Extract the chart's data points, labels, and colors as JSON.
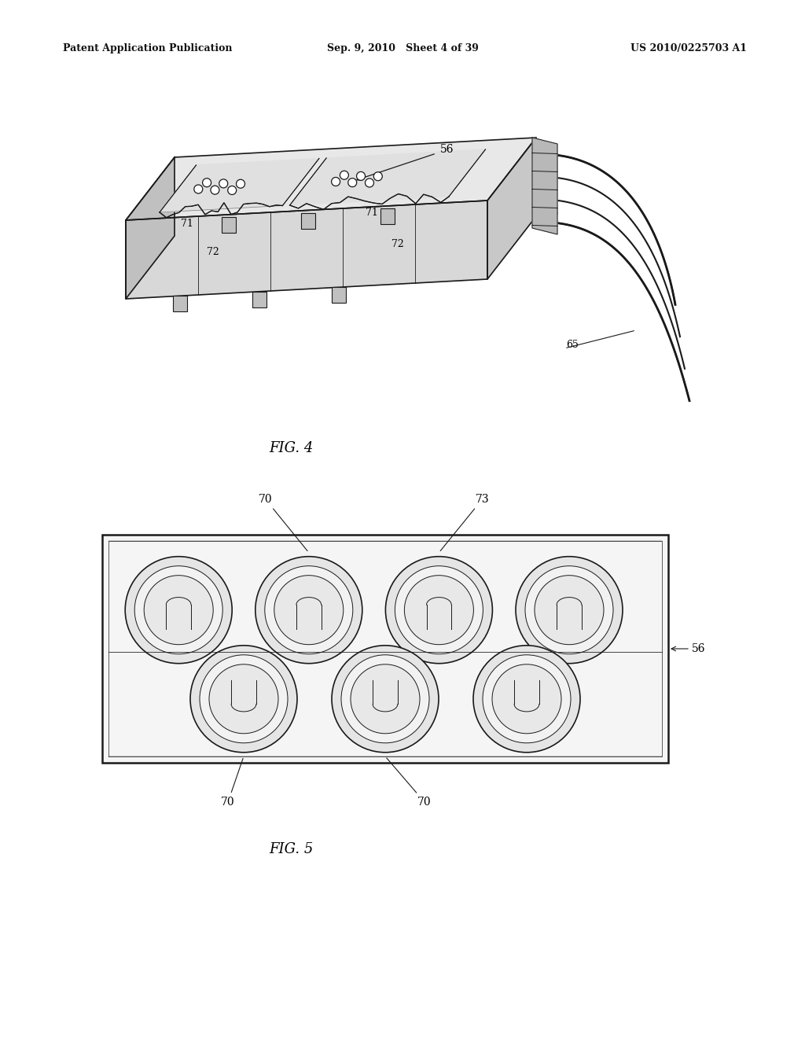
{
  "bg_color": "#ffffff",
  "header_left": "Patent Application Publication",
  "header_mid": "Sep. 9, 2010   Sheet 4 of 39",
  "header_right": "US 2010/0225703 A1",
  "fig4_label": "FIG. 4",
  "fig5_label": "FIG. 5",
  "line_color": "#1a1a1a",
  "lw_main": 1.2,
  "lw_thin": 0.7,
  "lw_thick": 1.8
}
